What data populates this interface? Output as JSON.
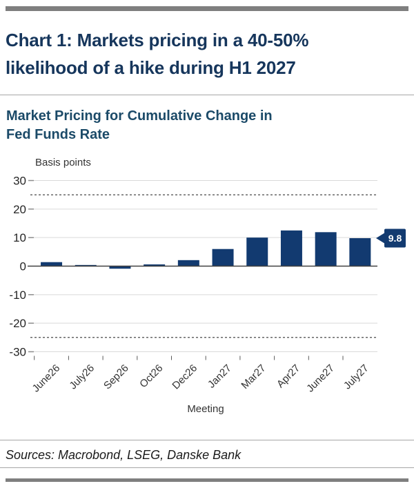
{
  "header": {
    "title_lines": [
      "Chart 1: Markets pricing in a 40-50%",
      "likelihood of a hike during H1 2027"
    ]
  },
  "chart": {
    "subtitle_lines": [
      "Market Pricing for Cumulative Change in",
      "Fed Funds Rate"
    ],
    "y_unit_label": "Basis points",
    "x_axis_label": "Meeting"
  },
  "chart_data": {
    "type": "bar",
    "title": "Market Pricing for Cumulative Change in Fed Funds Rate",
    "categories": [
      "June26",
      "July26",
      "Sep26",
      "Oct26",
      "Dec26",
      "Jan27",
      "Mar27",
      "Apr27",
      "June27",
      "July27"
    ],
    "values": [
      1.4,
      0.4,
      -0.9,
      0.6,
      2.1,
      6.0,
      10.0,
      12.5,
      11.9,
      9.8
    ],
    "xlabel": "Meeting",
    "ylabel": "Basis points",
    "ylim": [
      -30,
      30
    ],
    "yticks": [
      30,
      20,
      10,
      0,
      -10,
      -20,
      -30
    ],
    "reference_lines": [
      25,
      -25
    ],
    "grid": true,
    "legend": "none",
    "bar_color": "#123a70",
    "annotation": {
      "category": "July27",
      "value": 9.8,
      "text": "9.8"
    }
  },
  "footer": {
    "sources": "Sources: Macrobond, LSEG, Danske Bank"
  },
  "colors": {
    "title": "#16365c",
    "chart_title": "#1b4a68",
    "bar": "#123a70",
    "accent_bar": "#7f7f7f",
    "gridline": "#d9d9d9",
    "axis": "#404040",
    "callout_text": "#ffffff"
  }
}
